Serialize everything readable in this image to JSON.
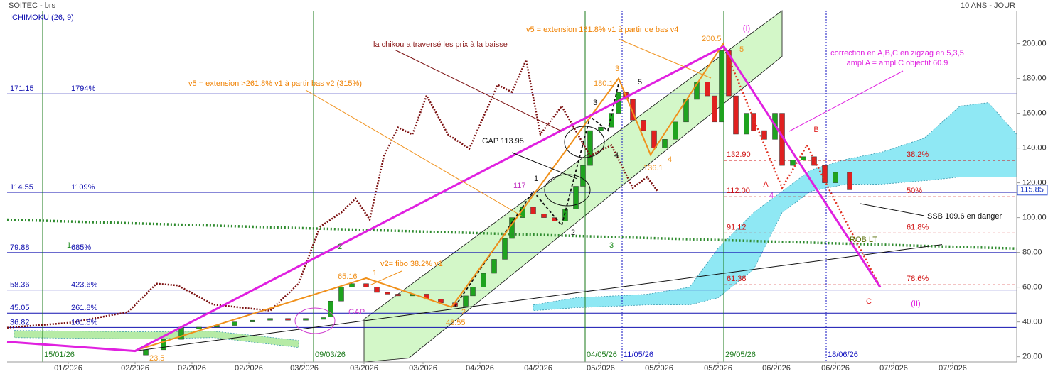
{
  "header": {
    "title": "SOITEC - brs",
    "period": "10 ANS - JOUR",
    "indicator": "ICHIMOKU (26, 9)"
  },
  "chart_data": {
    "type": "candlestick",
    "x": [
      19.5,
      22,
      24.5,
      27,
      29.5,
      32,
      34.5,
      37,
      39.5,
      42,
      44.5,
      45.5,
      47,
      48.5,
      50.5,
      52,
      53.5,
      55,
      57,
      59,
      61,
      63,
      64.5,
      65.5,
      67,
      68.5,
      70,
      71,
      72.5,
      74,
      75.5,
      77,
      78.5,
      80,
      81,
      82,
      83.5,
      85,
      86,
      87,
      88,
      89.5,
      91,
      92.5,
      94,
      95.5,
      97,
      98.5,
      99.5,
      100.5,
      101.5,
      102.5,
      104,
      105,
      106.5,
      108,
      109,
      110.5,
      112,
      113.5,
      115,
      116.5,
      118.5
    ],
    "open": [
      21,
      24,
      30,
      36,
      37,
      38,
      40,
      41,
      42,
      41,
      41.5,
      43,
      52,
      60,
      62,
      60,
      57,
      56,
      55,
      56,
      53,
      51,
      49,
      55,
      60,
      68,
      76,
      88,
      100,
      106,
      102,
      100,
      98,
      105,
      118,
      130,
      150,
      152,
      160,
      172,
      168,
      156,
      150,
      140,
      145,
      155,
      168,
      178,
      170,
      155,
      196,
      170,
      148,
      160,
      150,
      145,
      160,
      130,
      133,
      135,
      130,
      120,
      126
    ],
    "close": [
      24,
      30,
      37,
      37,
      38,
      40,
      41,
      42,
      41,
      42,
      42.5,
      52,
      60,
      62,
      60,
      57,
      56,
      55,
      56,
      53,
      51,
      49,
      55,
      60,
      68,
      76,
      88,
      100,
      106,
      102,
      100,
      98,
      105,
      118,
      130,
      150,
      152,
      160,
      172,
      168,
      156,
      150,
      140,
      145,
      155,
      168,
      178,
      170,
      155,
      196,
      170,
      148,
      160,
      150,
      145,
      160,
      130,
      133,
      135,
      130,
      120,
      126,
      116
    ],
    "up_color": "#1fa31f",
    "down_color": "#e02020",
    "xlim": [
      0,
      142
    ],
    "ylim": [
      17,
      219
    ],
    "xticks": [
      {
        "value": 8.6,
        "label": "01/2026"
      },
      {
        "value": 18,
        "label": "02/2026"
      },
      {
        "value": 26,
        "label": "02/2026"
      },
      {
        "value": 34,
        "label": "02/2026"
      },
      {
        "value": 41.8,
        "label": "03/2026"
      },
      {
        "value": 50.2,
        "label": "03/2026"
      },
      {
        "value": 58.5,
        "label": "03/2026"
      },
      {
        "value": 66.5,
        "label": "04/2026"
      },
      {
        "value": 74.7,
        "label": "04/2026"
      },
      {
        "value": 83.5,
        "label": "05/2026"
      },
      {
        "value": 91.7,
        "label": "05/2026"
      },
      {
        "value": 100,
        "label": "05/2026"
      },
      {
        "value": 108.2,
        "label": "06/2026"
      },
      {
        "value": 116.5,
        "label": "06/2026"
      },
      {
        "value": 124.7,
        "label": "07/2026"
      },
      {
        "value": 133,
        "label": "07/2026"
      }
    ],
    "yticks": [
      {
        "value": 20,
        "label": "20.00"
      },
      {
        "value": 40,
        "label": "40.00"
      },
      {
        "value": 60,
        "label": "60.00"
      },
      {
        "value": 80,
        "label": "80.00"
      },
      {
        "value": 100,
        "label": "100.00"
      },
      {
        "value": 120,
        "label": "120.00"
      },
      {
        "value": 140,
        "label": "140.00"
      },
      {
        "value": 160,
        "label": "160.00"
      },
      {
        "value": 180,
        "label": "180.00"
      },
      {
        "value": 200,
        "label": "200.00"
      }
    ],
    "last_price": 115.85,
    "levels": {
      "color": "#1010b0",
      "values": [
        171.15,
        114.55,
        79.88,
        58.36,
        45.05,
        36.82
      ],
      "labels": [
        "1794%",
        "1109%",
        "685%",
        "423.6%",
        "261.8%",
        "161.8%"
      ]
    },
    "fib": {
      "color": "#d01010",
      "values": [
        132.9,
        112,
        91.12,
        61.38
      ],
      "value_labels": [
        "132.90",
        "112.00",
        "91.12",
        "61.38"
      ],
      "labels": [
        "38.2%",
        "50%",
        "61.8%",
        "78.6%"
      ]
    },
    "verticals": {
      "x": [
        5,
        43.1,
        81.3,
        86.5,
        100.8,
        115.2
      ],
      "labels": [
        "15/01/26",
        "09/03/26",
        "04/05/26",
        "11/05/26",
        "29/05/26",
        "18/06/26"
      ],
      "colors": [
        "#1a7a1a",
        "#1a7a1a",
        "#1a7a1a",
        "#1010c0",
        "#1a7a1a",
        "#1010c0"
      ]
    },
    "clouds": [
      {
        "color": "#8fe8f4",
        "x": [
          74,
          80,
          90,
          96,
          100,
          105,
          109,
          113,
          118,
          123,
          129,
          134,
          138,
          142
        ],
        "upper": [
          49.8,
          53.9,
          55.9,
          60,
          82.4,
          102.9,
          115.1,
          127.3,
          133.5,
          137.6,
          145.7,
          164.1,
          166.1,
          147.8
        ],
        "lower": [
          46.5,
          48.2,
          49.8,
          49.8,
          53.9,
          70.2,
          102.9,
          115.1,
          119.2,
          119.2,
          121.2,
          123.3,
          123.3,
          123.3
        ]
      },
      {
        "color": "#b6eba6",
        "x": [
          1,
          19,
          29,
          41
        ],
        "upper": [
          35.1,
          34.3,
          34.7,
          29.4
        ],
        "lower": [
          31,
          30.2,
          31,
          25.3
        ]
      },
      {
        "color": "#d3f7c8",
        "x": [
          50.2,
          56.5,
          109
        ],
        "upper": [
          41.6,
          60.6,
          219
        ],
        "lower": [
          17,
          19.2,
          192.7
        ]
      }
    ],
    "lines": [
      {
        "color": "#2e8b2e",
        "width": 3.5,
        "dash": "2 3",
        "x": [
          0,
          142
        ],
        "values": [
          98.8,
          82.2
        ]
      },
      {
        "color": "#111111",
        "width": 1,
        "dash": "none",
        "x": [
          18,
          131.5
        ],
        "values": [
          23.3,
          84.5
        ]
      },
      {
        "color": "#7b1010",
        "width": 2.5,
        "dash": "2 2",
        "x": [
          0,
          9,
          17,
          21,
          24,
          29,
          37,
          41,
          44,
          47,
          49,
          51,
          53,
          55,
          57,
          59,
          62,
          65,
          69,
          71,
          73,
          75,
          78,
          82,
          85,
          88,
          90,
          91.5
        ],
        "values": [
          36.7,
          39.6,
          45.7,
          62,
          61,
          50,
          46.5,
          62,
          94.7,
          102.9,
          111,
          98.8,
          135.5,
          151.8,
          147.8,
          170.2,
          147.8,
          139.6,
          176.3,
          172.2,
          190.6,
          147.8,
          164.1,
          135.5,
          141.6,
          117.1,
          123.3,
          115.1
        ]
      },
      {
        "color": "#111111",
        "width": 1.8,
        "dash": "4 3",
        "x": [
          63,
          74,
          78,
          82,
          84.5,
          86
        ],
        "values": [
          49,
          115.1,
          95.5,
          158,
          150,
          177
        ]
      },
      {
        "color": "#e03020",
        "width": 2.5,
        "dash": "2 3",
        "x": [
          100.8,
          109,
          112.5,
          115.5,
          122.8
        ],
        "values": [
          198.4,
          117.1,
          141.6,
          117.1,
          60
        ]
      },
      {
        "color": "#f0901a",
        "width": 2,
        "dash": "none",
        "x": [
          18,
          50.5,
          62.5,
          86,
          90.5,
          100.8
        ],
        "values": [
          23.5,
          65.16,
          48.55,
          180.1,
          136.1,
          200.5
        ]
      },
      {
        "color": "#e020e0",
        "width": 3,
        "dash": "none",
        "x": [
          0,
          18,
          100.8,
          122.8
        ],
        "values": [
          28.6,
          23.3,
          198.4,
          60
        ]
      }
    ],
    "peak_label": 117,
    "annotations": [
      "la chikou a traversé les prix à la baisse",
      "v5 = extension 161.8% v1 à partir de bas v4",
      "v5 = extension >261.8% v1 à partir bas v2 (315%)",
      "GAP 113.95",
      "correction en A,B,C en zigzag en 5,3,5",
      "ampl A = ampl C objectif 60.9",
      "SSB 109.6 en danger",
      "v2= fibo 38.2% v1",
      "GAP",
      "ROB LT"
    ],
    "wave_labels": [
      "1",
      "2",
      "3",
      "(I)",
      "(II)",
      "5",
      "1",
      "2",
      "3",
      "4",
      "A",
      "B",
      "C",
      "4",
      "1",
      "2",
      "3",
      "4",
      "5"
    ]
  }
}
